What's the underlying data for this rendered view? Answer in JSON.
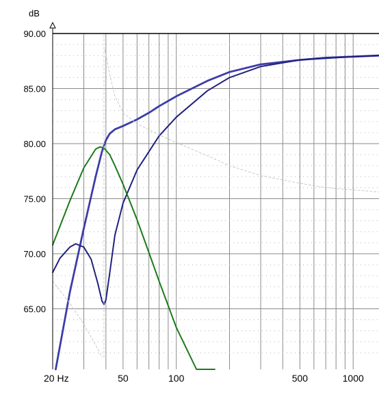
{
  "chart_data": {
    "type": "line",
    "title": "",
    "xlabel": "",
    "ylabel": "dB",
    "x_scale": "log",
    "xlim": [
      20,
      1400
    ],
    "ylim": [
      59.5,
      90
    ],
    "grid": true,
    "y_ticks": [
      "90.00",
      "85.00",
      "80.00",
      "75.00",
      "70.00",
      "65.00"
    ],
    "y_tick_values": [
      90,
      85,
      80,
      75,
      70,
      65
    ],
    "x_tick_labels": [
      "20 Hz",
      "50",
      "100",
      "500",
      "1000"
    ],
    "x_tick_values": [
      20,
      50,
      100,
      500,
      1000
    ],
    "series": [
      {
        "color": "#3c3ca8",
        "style": "solid",
        "x": [
          20.8,
          25,
          30,
          35,
          38,
          40,
          42,
          45,
          50,
          60,
          70,
          80,
          100,
          150,
          200,
          300,
          500,
          700,
          1000,
          1400
        ],
        "y": [
          59.5,
          66.5,
          72.3,
          77.0,
          79.3,
          80.3,
          80.9,
          81.3,
          81.6,
          82.2,
          82.8,
          83.4,
          84.3,
          85.7,
          86.5,
          87.2,
          87.6,
          87.8,
          87.9,
          88.0
        ]
      },
      {
        "color": "#202080",
        "style": "solid",
        "x": [
          20,
          22,
          25,
          27,
          30,
          33,
          36,
          38,
          39,
          40,
          42,
          45,
          50,
          60,
          80,
          100,
          150,
          200,
          300,
          500,
          1000,
          1400
        ],
        "y": [
          68.3,
          69.6,
          70.6,
          70.9,
          70.6,
          69.5,
          67.3,
          65.7,
          65.4,
          65.8,
          68.2,
          71.7,
          74.6,
          77.6,
          80.7,
          82.4,
          84.8,
          86.0,
          87.0,
          87.6,
          87.9,
          88.0
        ]
      },
      {
        "color": "#1a7a1a",
        "style": "solid",
        "x": [
          20,
          25,
          30,
          35,
          37,
          39,
          42,
          45,
          50,
          60,
          70,
          80,
          100,
          130,
          165
        ],
        "y": [
          70.8,
          74.8,
          77.8,
          79.5,
          79.7,
          79.6,
          79.0,
          78.0,
          76.3,
          73.1,
          70.1,
          67.5,
          63.3,
          59.5,
          59.5
        ]
      },
      {
        "color": "#c8c8c8",
        "style": "dashed",
        "x": [
          39.5,
          42,
          45,
          50,
          60,
          80,
          100,
          150,
          200,
          300,
          500,
          700,
          1000,
          1400
        ],
        "y": [
          88.5,
          86.3,
          84.3,
          82.8,
          81.8,
          80.8,
          80.1,
          78.9,
          78.0,
          77.1,
          76.4,
          76.0,
          75.8,
          75.6
        ]
      },
      {
        "color": "#c8c8c8",
        "style": "dashed",
        "x": [
          20,
          25,
          30,
          35,
          38
        ],
        "y": [
          67.5,
          65.5,
          63.6,
          61.7,
          60.6
        ]
      },
      {
        "color": "#c8c8c8",
        "style": "dashed-vertical",
        "x": [
          39,
          39
        ],
        "y": [
          60.6,
          90
        ]
      }
    ]
  }
}
